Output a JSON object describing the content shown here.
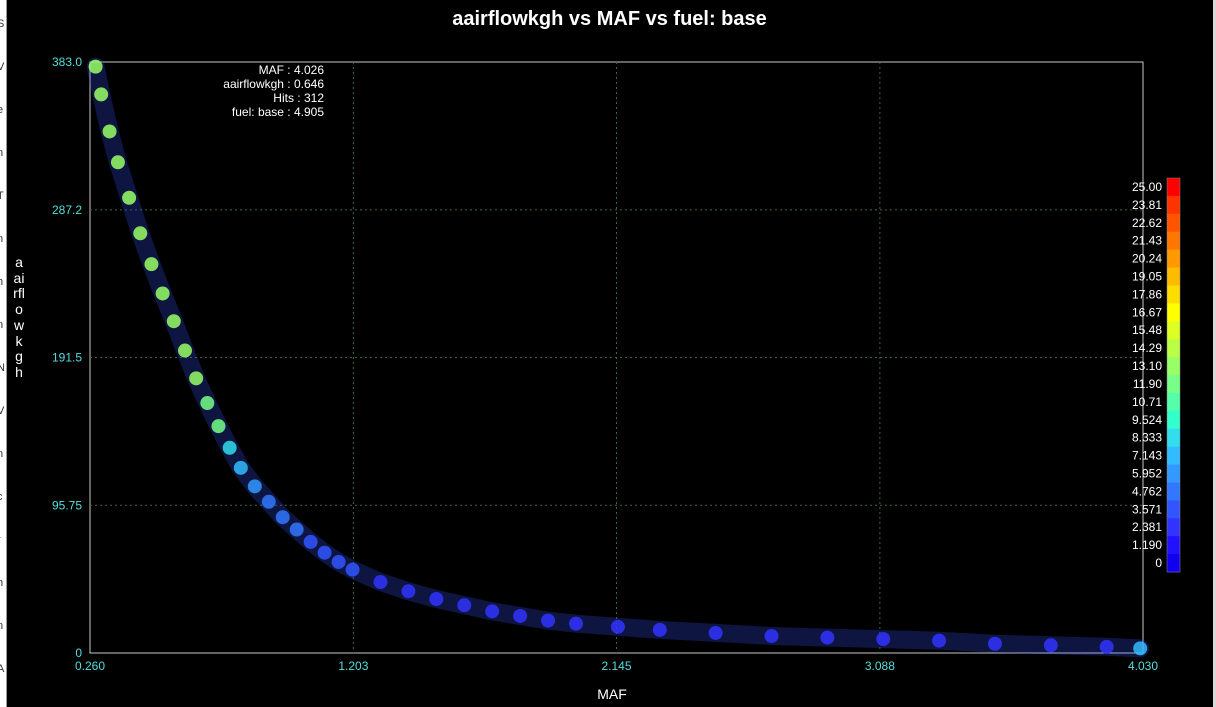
{
  "left_strip_letters": [
    "S",
    "V",
    "e",
    "n",
    "T",
    "n",
    "h",
    "n",
    "N",
    "V",
    "n",
    "c",
    "r",
    "h",
    "n",
    "A"
  ],
  "chart_data": {
    "type": "scatter",
    "title": "aairflowkgh vs MAF vs fuel: base",
    "xlabel": "MAF",
    "ylabel": "aairflowkgh",
    "xlim": [
      0.26,
      4.03
    ],
    "ylim": [
      0,
      383.0
    ],
    "x_ticks": [
      "0.260",
      "1.203",
      "2.145",
      "3.088",
      "4.030"
    ],
    "x_tick_values": [
      0.26,
      1.203,
      2.145,
      3.088,
      4.03
    ],
    "y_ticks": [
      "0",
      "95.75",
      "191.5",
      "287.2",
      "383.0"
    ],
    "y_tick_values": [
      0,
      95.75,
      191.5,
      287.2,
      383.0
    ],
    "grid": true,
    "color_scale": {
      "label": "fuel: base",
      "min": 0,
      "max": 25.0,
      "ticks": [
        "25.00",
        "23.81",
        "22.62",
        "21.43",
        "20.24",
        "19.05",
        "17.86",
        "16.67",
        "15.48",
        "14.29",
        "13.10",
        "11.90",
        "10.71",
        "9.524",
        "8.333",
        "7.143",
        "5.952",
        "4.762",
        "3.571",
        "2.381",
        "1.190",
        "0"
      ],
      "colors": [
        "#ff0000",
        "#ff3300",
        "#ff5500",
        "#ff7700",
        "#ff9900",
        "#ffbb00",
        "#ffdd00",
        "#ffff00",
        "#ddff22",
        "#bbff44",
        "#99ff66",
        "#77ff88",
        "#55ffaa",
        "#33ffcc",
        "#33ddee",
        "#33bbff",
        "#3399ff",
        "#3377ff",
        "#3355ff",
        "#3333ff",
        "#2211ff",
        "#1100ee"
      ],
      "placement": "right"
    },
    "series": [
      {
        "points": [
          [
            0.28,
            380
          ],
          [
            0.3,
            362
          ],
          [
            0.33,
            338
          ],
          [
            0.36,
            318
          ],
          [
            0.4,
            295
          ],
          [
            0.44,
            272
          ],
          [
            0.48,
            252
          ],
          [
            0.52,
            233
          ],
          [
            0.56,
            215
          ],
          [
            0.6,
            196
          ],
          [
            0.64,
            178
          ],
          [
            0.68,
            162
          ],
          [
            0.72,
            147
          ],
          [
            0.76,
            133
          ],
          [
            0.8,
            120
          ],
          [
            0.85,
            108
          ],
          [
            0.9,
            98
          ],
          [
            0.95,
            88
          ],
          [
            1.0,
            80
          ],
          [
            1.05,
            72
          ],
          [
            1.1,
            65
          ],
          [
            1.15,
            59
          ],
          [
            1.2,
            54
          ],
          [
            1.3,
            46
          ],
          [
            1.4,
            40
          ],
          [
            1.5,
            35
          ],
          [
            1.6,
            31
          ],
          [
            1.7,
            27
          ],
          [
            1.8,
            24
          ],
          [
            1.9,
            21
          ],
          [
            2.0,
            19
          ],
          [
            2.15,
            17
          ],
          [
            2.3,
            15
          ],
          [
            2.5,
            13
          ],
          [
            2.7,
            11
          ],
          [
            2.9,
            10
          ],
          [
            3.1,
            9
          ],
          [
            3.3,
            8
          ],
          [
            3.5,
            6
          ],
          [
            3.7,
            5
          ],
          [
            3.9,
            4
          ],
          [
            4.02,
            3
          ]
        ],
        "fuel": [
          13.1,
          13.1,
          13.1,
          13.1,
          13.1,
          13.1,
          13.1,
          13.1,
          13.1,
          13.1,
          13.1,
          11.9,
          11.9,
          8.333,
          7.143,
          5.952,
          4.762,
          4.762,
          4.762,
          3.571,
          3.571,
          3.571,
          3.571,
          2.381,
          2.381,
          2.381,
          2.381,
          2.381,
          2.381,
          2.381,
          2.381,
          2.381,
          2.381,
          2.381,
          2.381,
          2.381,
          2.381,
          2.381,
          2.381,
          2.381,
          2.381,
          7.143
        ]
      }
    ]
  },
  "readout": {
    "maf_line": "MAF : 4.026",
    "airflow_line": "aairflowkgh : 0.646",
    "hits_line": "Hits : 312",
    "fuel_line": "fuel: base : 4.905"
  },
  "colors": {
    "background": "#000000",
    "plot_border": "#c8c8c8",
    "grid": "#3a6a3a",
    "tick_text": "#55dddd",
    "colorbar_text": "#ffffff"
  }
}
